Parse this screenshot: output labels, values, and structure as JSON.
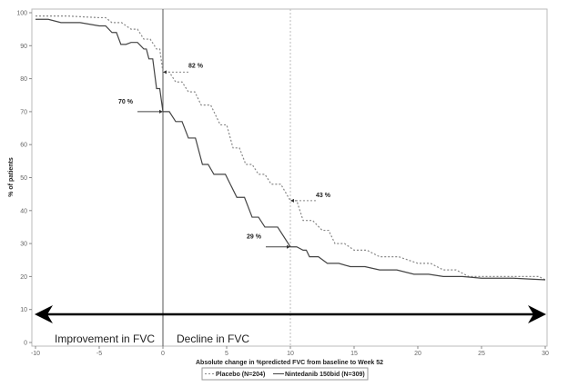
{
  "chart_data": {
    "type": "line",
    "xlabel": "Absolute change in %predicted FVC from baseline to Week 52",
    "ylabel": "% of patients",
    "xlim": [
      -10,
      30
    ],
    "ylim": [
      0,
      100
    ],
    "xticks": [
      -10,
      -5,
      0,
      5,
      10,
      15,
      20,
      25,
      30
    ],
    "yticks": [
      0,
      10,
      20,
      30,
      40,
      50,
      60,
      70,
      80,
      90,
      100
    ],
    "grid": false,
    "legend_position": "bottom",
    "series": [
      {
        "name": "Placebo (N=204)",
        "style": "dotted",
        "color": "#888888",
        "x": [
          -10,
          -5,
          -4,
          -2.5,
          -1.5,
          -0.5,
          0,
          1,
          2,
          3,
          4.5,
          5.5,
          6.5,
          7.5,
          8.5,
          10,
          11,
          12.5,
          13.5,
          15,
          17,
          20,
          22,
          24,
          29,
          30
        ],
        "y": [
          99,
          98.5,
          97,
          95,
          92,
          89,
          82,
          79,
          76,
          72,
          66,
          59,
          54,
          51,
          48,
          43,
          37,
          34,
          30,
          28,
          26,
          24,
          22,
          20,
          20,
          19
        ]
      },
      {
        "name": "Nintedanib 150bid (N=309)",
        "style": "solid",
        "color": "#444444",
        "x": [
          -10,
          -8,
          -5,
          -4,
          -3.3,
          -2.5,
          -1.5,
          -1.1,
          -0.5,
          0,
          1,
          2,
          3.1,
          4,
          5.8,
          7,
          8,
          10,
          11,
          11.5,
          12.9,
          14.7,
          17,
          19.7,
          22,
          25,
          30
        ],
        "y": [
          98,
          97,
          96,
          94,
          90.4,
          91,
          89,
          86,
          77,
          70,
          67,
          62,
          54,
          51,
          44,
          38,
          35,
          29,
          28,
          26,
          24,
          23,
          22,
          20.7,
          20,
          19.5,
          19
        ]
      }
    ],
    "annotations": [
      {
        "text": "82 %",
        "x": 0,
        "y": 82,
        "series": "Placebo (N=204)"
      },
      {
        "text": "70 %",
        "x": 0,
        "y": 70,
        "series": "Nintedanib 150bid (N=309)"
      },
      {
        "text": "43 %",
        "x": 10,
        "y": 43,
        "series": "Placebo (N=204)"
      },
      {
        "text": "29 %",
        "x": 10,
        "y": 29,
        "series": "Nintedanib 150bid (N=309)"
      }
    ],
    "reference_lines_x": [
      0,
      10
    ],
    "region_labels": [
      "Improvement in FVC",
      "Decline in FVC"
    ]
  }
}
